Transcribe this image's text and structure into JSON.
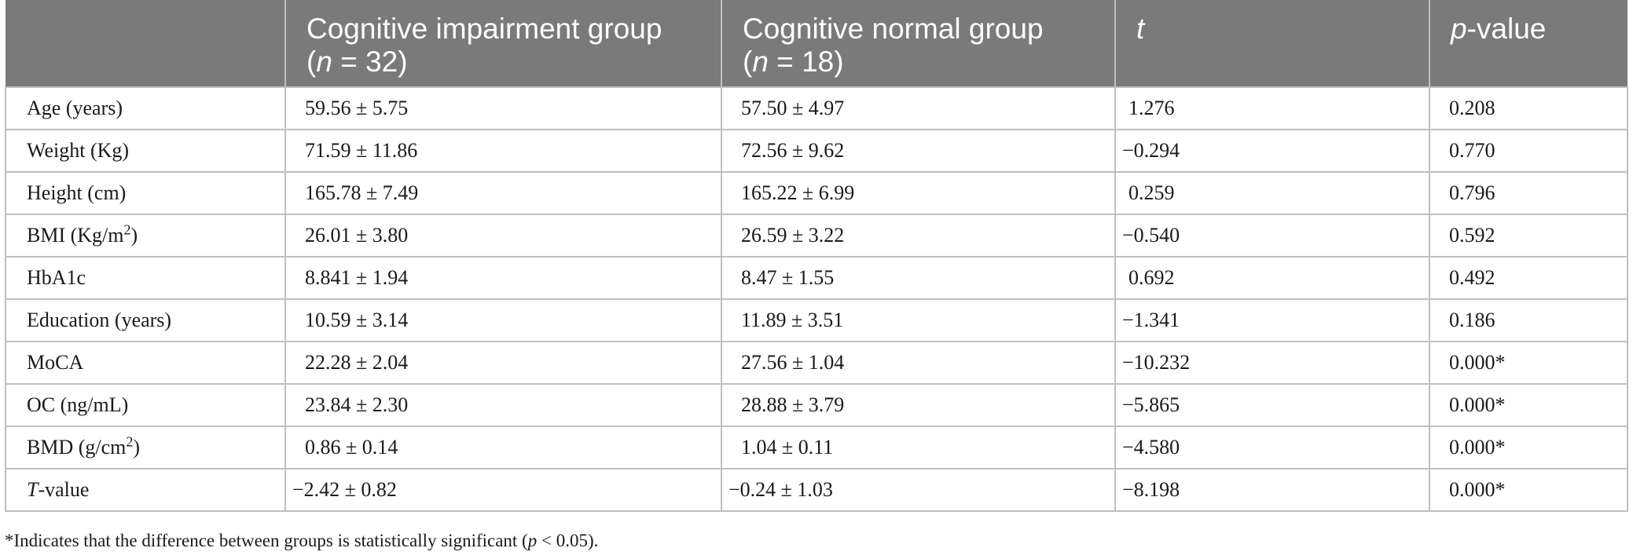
{
  "table": {
    "headers": {
      "col0": "",
      "col1_line1": "Cognitive impairment group",
      "col1_n_label": "n",
      "col1_n_value": " = 32)",
      "col2_line1": "Cognitive normal group",
      "col2_n_label": "n",
      "col2_n_value": " = 18)",
      "col3": "t",
      "col4_italic": "p",
      "col4_rest": "-value"
    },
    "rows": [
      {
        "label": "Age (years)",
        "impairment": "59.56 ± 5.75",
        "normal": "57.50 ± 4.97",
        "t": "1.276",
        "p": "0.208"
      },
      {
        "label": "Weight (Kg)",
        "impairment": "71.59 ± 11.86",
        "normal": "72.56 ± 9.62",
        "t": "−0.294",
        "p": "0.770"
      },
      {
        "label": "Height (cm)",
        "impairment": "165.78 ± 7.49",
        "normal": "165.22 ± 6.99",
        "t": "0.259",
        "p": "0.796"
      },
      {
        "label_main": "BMI (Kg/m",
        "label_sup": "2",
        "label_end": ")",
        "impairment": "26.01 ± 3.80",
        "normal": "26.59 ± 3.22",
        "t": "−0.540",
        "p": "0.592"
      },
      {
        "label": "HbA1c",
        "impairment": "8.841 ± 1.94",
        "normal": "8.47 ± 1.55",
        "t": "0.692",
        "p": "0.492"
      },
      {
        "label": "Education (years)",
        "impairment": "10.59 ± 3.14",
        "normal": "11.89 ± 3.51",
        "t": "−1.341",
        "p": "0.186"
      },
      {
        "label": "MoCA",
        "impairment": "22.28 ± 2.04",
        "normal": "27.56 ± 1.04",
        "t": "−10.232",
        "p": "0.000*"
      },
      {
        "label": "OC (ng/mL)",
        "impairment": "23.84 ± 2.30",
        "normal": "28.88 ± 3.79",
        "t": "−5.865",
        "p": "0.000*"
      },
      {
        "label_main": "BMD (g/cm",
        "label_sup": "2",
        "label_end": ")",
        "impairment": "0.86 ± 0.14",
        "normal": "1.04 ± 0.11",
        "t": "−4.580",
        "p": "0.000*"
      },
      {
        "label_italic": "T",
        "label_rest": "-value",
        "impairment": "−2.42 ± 0.82",
        "normal": "−0.24 ± 1.03",
        "t": "−8.198",
        "p": "0.000*"
      }
    ]
  },
  "footnote": {
    "text_start": "*Indicates that the difference between groups is statistically significant (",
    "p_symbol": "p",
    "text_end": " < 0.05)."
  }
}
